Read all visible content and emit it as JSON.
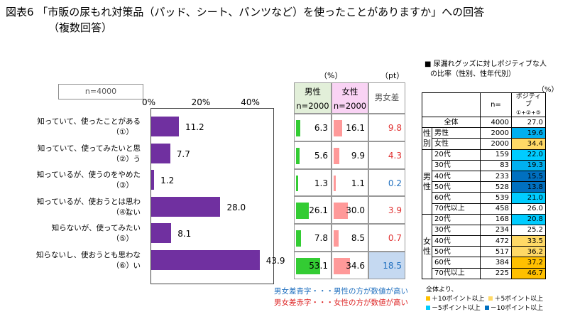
{
  "title": {
    "line1": "図表6 「市販の尿もれ対策品（パッド、シート、パンツなど）を使ったことがありますか」への回答",
    "line2": "（複数回答）"
  },
  "sample": "n=4000",
  "chart_data": {
    "type": "bar",
    "orientation": "horizontal",
    "categories": [
      {
        "label": "知っていて、使ったことがある",
        "code": "（①）"
      },
      {
        "label": "知っていて、使ってみたいと思う",
        "code": "（②）"
      },
      {
        "label": "知っているが、使うのをやめた",
        "code": "（③）"
      },
      {
        "label": "知っているが、使おうとは思わない",
        "code": "（④）"
      },
      {
        "label": "知らないが、使ってみたい",
        "code": "（⑤）"
      },
      {
        "label": "知らないし、使おうとも思わない",
        "code": "（⑥）"
      }
    ],
    "values": [
      11.2,
      7.7,
      1.2,
      28.0,
      8.1,
      43.9
    ],
    "value_labels": [
      "11.2",
      "7.7",
      "1.2",
      "28.0",
      "8.1",
      "43.9"
    ],
    "xlim": [
      0,
      50
    ],
    "ticks": [
      "0%",
      "20%",
      "40%"
    ],
    "tick_values": [
      0,
      20,
      40
    ],
    "bar_color": "#7030a0"
  },
  "gender_table": {
    "unit_pct": "（%）",
    "unit_pt": "（pt）",
    "male_header": "男性",
    "male_n": "n=2000",
    "female_header": "女性",
    "female_n": "n=2000",
    "diff_header": "男女差",
    "male_values": [
      "6.3",
      "5.6",
      "1.3",
      "26.1",
      "7.8",
      "53.1"
    ],
    "male_nums": [
      6.3,
      5.6,
      1.3,
      26.1,
      7.8,
      53.1
    ],
    "female_values": [
      "16.1",
      "9.9",
      "1.1",
      "30.0",
      "8.5",
      "34.6"
    ],
    "female_nums": [
      16.1,
      9.9,
      1.1,
      30.0,
      8.5,
      34.6
    ],
    "diff_values": [
      "9.8",
      "4.3",
      "0.2",
      "3.9",
      "0.7",
      "18.5"
    ],
    "diff_colors": [
      "#e03030",
      "#e03030",
      "#1f6fbf",
      "#e03030",
      "#e03030",
      "#1f6fbf"
    ],
    "male_color": "#33cc33",
    "female_color": "#ff9999",
    "male_header_bg": "#e2efd9",
    "female_header_bg": "#f9d3f4",
    "highlight_bg": "#c5d9f1",
    "legend_blue": "男女差青字・・・男性の方が数値が高い",
    "legend_red": "男女差赤字・・・女性の方が数値が高い"
  },
  "ratio_table": {
    "heading1": "■ 尿漏れグッズに対しポジティブな人",
    "heading2": "の比率（性別、性年代別）",
    "unit": "（%）",
    "col_n": "n=",
    "col_pos1": "ポジティブ",
    "col_pos2": "①+②+⑤",
    "total_label": "全体",
    "total_n": "4000",
    "total_val": "27.0",
    "gender_group": "性別",
    "gender_rows": [
      {
        "label": "男性",
        "n": "2000",
        "val": "19.6",
        "bg": "#00b0f0"
      },
      {
        "label": "女性",
        "n": "2000",
        "val": "34.4",
        "bg": "#ffd966"
      }
    ],
    "male_group": "男性",
    "male_rows": [
      {
        "label": "20代",
        "n": "159",
        "val": "22.0",
        "bg": "#00ccff"
      },
      {
        "label": "30代",
        "n": "83",
        "val": "19.3",
        "bg": "#00b0f0"
      },
      {
        "label": "40代",
        "n": "233",
        "val": "15.5",
        "bg": "#0070c0"
      },
      {
        "label": "50代",
        "n": "528",
        "val": "13.8",
        "bg": "#0070c0"
      },
      {
        "label": "60代",
        "n": "539",
        "val": "21.0",
        "bg": "#00ccff"
      },
      {
        "label": "70代以上",
        "n": "458",
        "val": "26.0",
        "bg": "#ffffff"
      }
    ],
    "female_group": "女性",
    "female_rows": [
      {
        "label": "20代",
        "n": "168",
        "val": "20.8",
        "bg": "#00ccff"
      },
      {
        "label": "30代",
        "n": "234",
        "val": "25.2",
        "bg": "#ffffff"
      },
      {
        "label": "40代",
        "n": "472",
        "val": "33.5",
        "bg": "#ffd966"
      },
      {
        "label": "50代",
        "n": "517",
        "val": "36.2",
        "bg": "#ffd966"
      },
      {
        "label": "60代",
        "n": "384",
        "val": "37.2",
        "bg": "#ffc000"
      },
      {
        "label": "70代以上",
        "n": "225",
        "val": "46.7",
        "bg": "#ffc000"
      }
    ],
    "legend_base": "全体より、",
    "legend_items": [
      {
        "text": "＋10ポイント以上",
        "color": "#ffc000"
      },
      {
        "text": "＋5ポイント以上",
        "color": "#ffd966"
      },
      {
        "text": "－5ポイント以上",
        "color": "#00ccff"
      },
      {
        "text": "－10ポイント以上",
        "color": "#0070c0"
      }
    ]
  }
}
